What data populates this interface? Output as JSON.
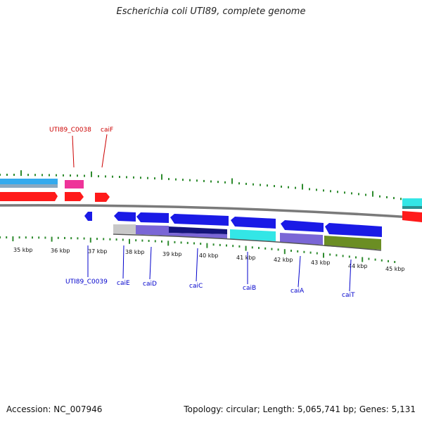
{
  "title": "Escherichia coli UTI89, complete genome",
  "footer": {
    "accession": "Accession: NC_007946",
    "summary": "Topology: circular; Length: 5,065,741 bp; Genes: 5,131"
  },
  "colors": {
    "tick": "#2e8b2e",
    "backbone": "#7a7a7a",
    "label_top": "#cc0000",
    "label_bottom": "#0000cc",
    "gene_blue": "#1a1ae6",
    "gene_red": "#ff1a1a",
    "gene_pink": "#ee3399",
    "gene_cyan": "#33e6e6",
    "gene_sky": "#33aaee",
    "gene_purple": "#7a66d6",
    "gene_navy": "#14147a",
    "gene_olive": "#6b8e23",
    "gene_gray": "#c8c8c8"
  },
  "scale_labels": [
    "35 kbp",
    "36 kbp",
    "37 kbp",
    "38 kbp",
    "39 kbp",
    "40 kbp",
    "41 kbp",
    "42 kbp",
    "43 kbp",
    "44 kbp",
    "45 kbp"
  ],
  "gene_labels_top": [
    "UTI89_C0038",
    "caiF"
  ],
  "gene_labels_bottom": [
    "UTI89_C0039",
    "caiE",
    "caiD",
    "caiC",
    "caiB",
    "caiA",
    "caiT"
  ]
}
